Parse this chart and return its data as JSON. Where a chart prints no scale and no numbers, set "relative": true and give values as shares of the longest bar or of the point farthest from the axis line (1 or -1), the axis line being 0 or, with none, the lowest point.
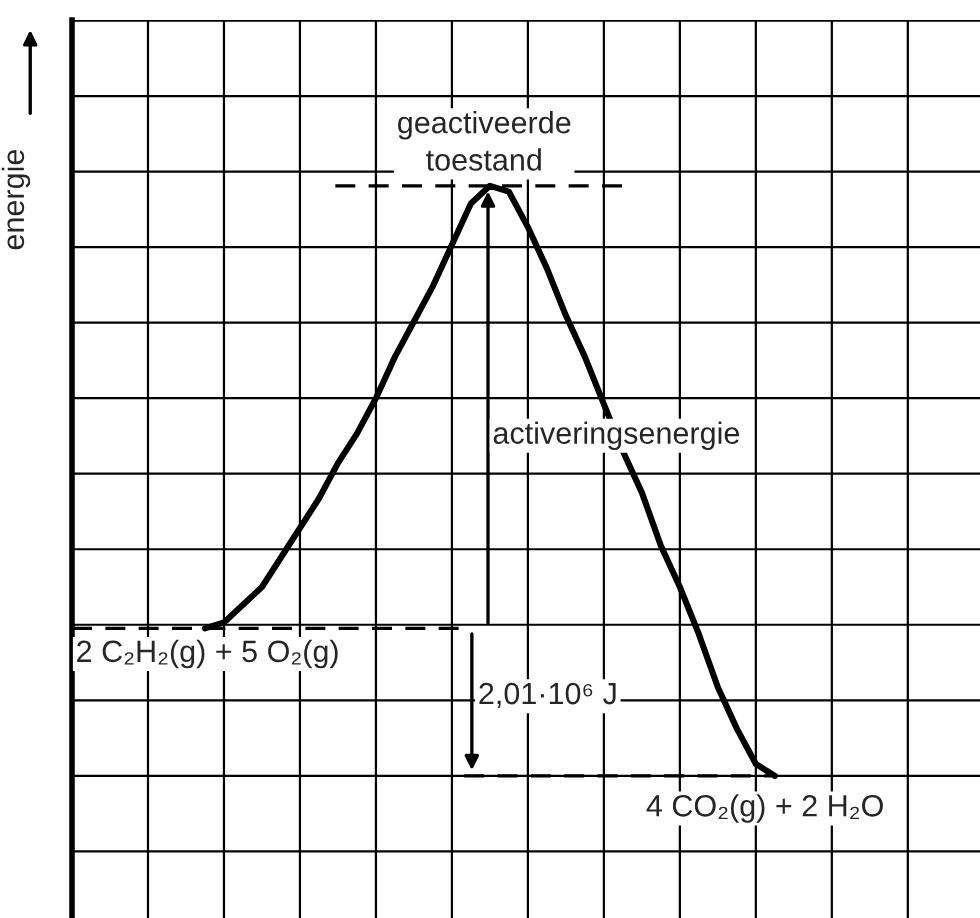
{
  "chart_data": {
    "type": "line",
    "relative": true,
    "ylabel": "energie",
    "grid": true,
    "tick_labels": false,
    "color": "#000000",
    "categories": [
      null,
      null,
      null,
      null,
      null,
      null,
      null,
      null,
      null,
      null,
      null,
      null,
      null,
      null,
      null,
      null,
      null,
      null,
      null,
      null,
      null,
      null,
      null,
      null,
      null,
      null,
      null,
      null,
      null,
      null,
      null,
      null,
      null,
      null,
      null,
      null,
      null,
      null,
      null,
      null,
      null,
      null,
      null,
      null,
      null,
      null,
      null,
      null
    ],
    "values": [
      null,
      null,
      null,
      null,
      null,
      null,
      null,
      0.25,
      0.26,
      0.29,
      0.32,
      0.37,
      0.42,
      0.47,
      0.53,
      0.58,
      0.64,
      0.71,
      0.77,
      0.83,
      0.9,
      0.97,
      1.0,
      0.99,
      0.93,
      0.86,
      0.78,
      0.71,
      0.63,
      0.55,
      0.48,
      0.39,
      0.32,
      0.24,
      0.15,
      0.08,
      0.02,
      0.0,
      null,
      null,
      null,
      null,
      null,
      null,
      null,
      null,
      null,
      null
    ],
    "ref_lines": [
      {
        "axis": "y",
        "value": 0.25,
        "line_style": "dashed"
      },
      {
        "axis": "y",
        "value": 0.0,
        "line_style": "dashed"
      },
      {
        "axis": "y",
        "value": 1.0,
        "line_style": "dashed"
      }
    ],
    "annotations": [
      "geactiveerde\ntoestand",
      "activeringsenergie",
      "2 C₂H₂(g) + 5 O₂(g)",
      "2,01·10⁶ J",
      "4 CO₂(g) + 2 H₂O"
    ]
  }
}
